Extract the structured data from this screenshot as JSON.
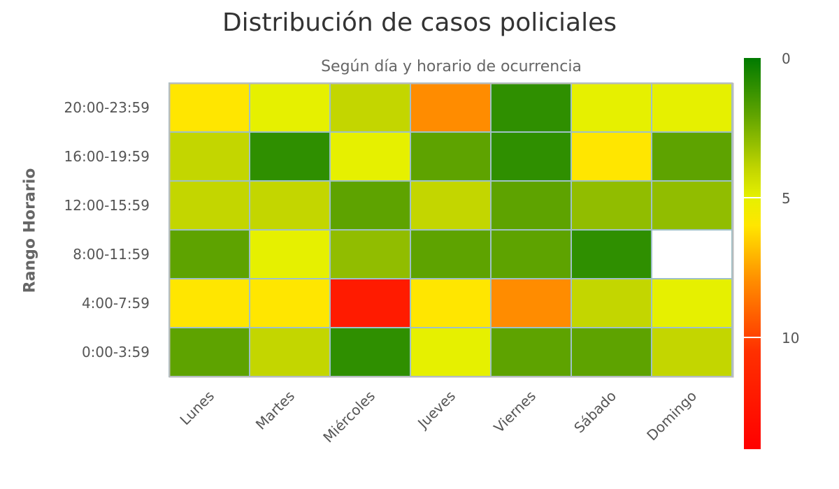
{
  "chart_data": {
    "type": "heatmap",
    "title": "Distribución de casos policiales",
    "subtitle": "Según día y horario de ocurrencia",
    "ylabel": "Rango Horario",
    "x_categories": [
      "Lunes",
      "Martes",
      "Miércoles",
      "Jueves",
      "Viernes",
      "Sábado",
      "Domingo"
    ],
    "y_categories": [
      "20:00-23:59",
      "16:00-19:59",
      "12:00-15:59",
      "8:00-11:59",
      "4:00-7:59",
      "0:00-3:59"
    ],
    "values": [
      [
        6,
        5,
        4,
        8,
        1,
        5,
        5
      ],
      [
        4,
        1,
        5,
        2,
        1,
        6,
        2
      ],
      [
        4,
        4,
        2,
        4,
        2,
        3,
        3
      ],
      [
        2,
        5,
        3,
        2,
        2,
        1,
        null
      ],
      [
        6,
        6,
        12,
        6,
        8,
        4,
        5
      ],
      [
        2,
        4,
        1,
        5,
        2,
        2,
        4
      ]
    ],
    "colorscale": {
      "min": 0,
      "max": 14,
      "stops": [
        {
          "value": 0,
          "color": "#007a00"
        },
        {
          "value": 2,
          "color": "#5ea300"
        },
        {
          "value": 4,
          "color": "#c3d600"
        },
        {
          "value": 5,
          "color": "#e6f000"
        },
        {
          "value": 6,
          "color": "#ffe600"
        },
        {
          "value": 8,
          "color": "#ff8c00"
        },
        {
          "value": 10.5,
          "color": "#ff3000"
        },
        {
          "value": 14,
          "color": "#ff0000"
        }
      ],
      "ticks": [
        0,
        5,
        10
      ]
    }
  }
}
